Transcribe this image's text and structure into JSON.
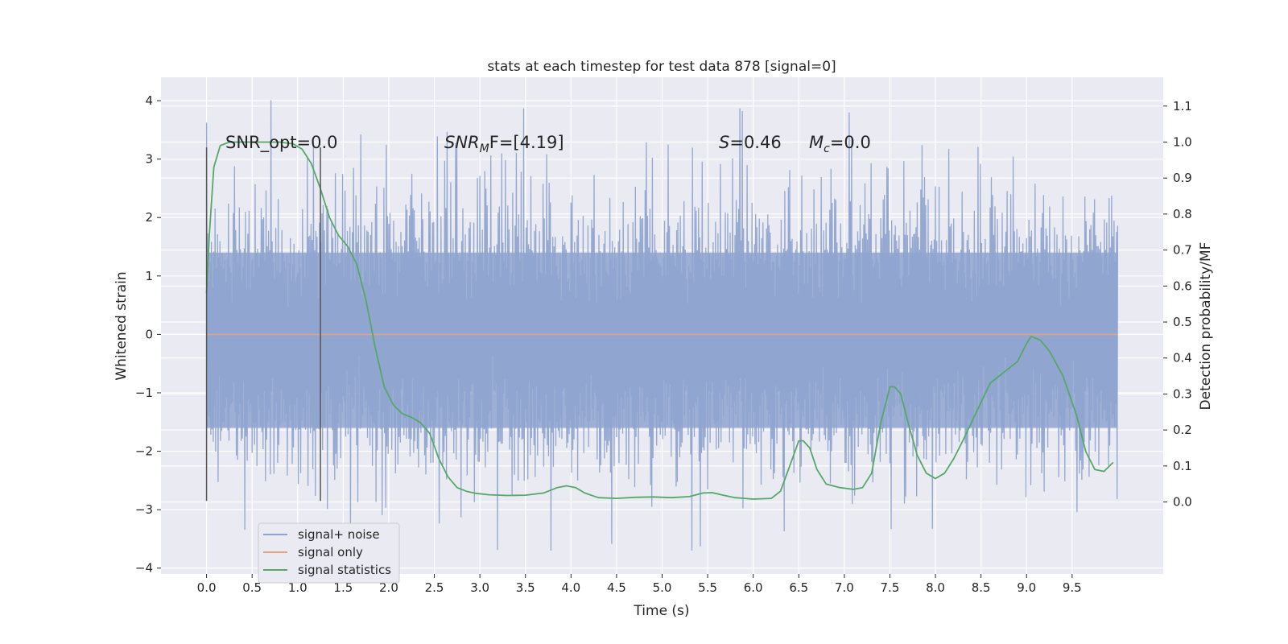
{
  "chart_data": {
    "type": "line",
    "title": "stats at each timestep for test data 878 [signal=0]",
    "xlabel": "Time (s)",
    "ylabel": "Whitened strain",
    "ylabel_right": "Detection probability/MF",
    "xlim": [
      -0.5,
      10.5
    ],
    "ylim": [
      -4.1,
      4.4
    ],
    "ylim_right": [
      -0.2,
      1.18
    ],
    "x_ticks": [
      0.0,
      0.5,
      1.0,
      1.5,
      2.0,
      2.5,
      3.0,
      3.5,
      4.0,
      4.5,
      5.0,
      5.5,
      6.0,
      6.5,
      7.0,
      7.5,
      8.0,
      8.5,
      9.0,
      9.5
    ],
    "x_tick_labels": [
      "0.0",
      "0.5",
      "1.0",
      "1.5",
      "2.0",
      "2.5",
      "3.0",
      "3.5",
      "4.0",
      "4.5",
      "5.0",
      "5.5",
      "6.0",
      "6.5",
      "7.0",
      "7.5",
      "8.0",
      "8.5",
      "9.0",
      "9.5"
    ],
    "y_ticks": [
      -4,
      -3,
      -2,
      -1,
      0,
      1,
      2,
      3,
      4
    ],
    "y_tick_labels": [
      "−4",
      "−3",
      "−2",
      "−1",
      "0",
      "1",
      "2",
      "3",
      "4"
    ],
    "y_ticks_right": [
      0.0,
      0.1,
      0.2,
      0.3,
      0.4,
      0.5,
      0.6,
      0.7,
      0.8,
      0.9,
      1.0,
      1.1
    ],
    "y_tick_labels_right": [
      "0.0",
      "0.1",
      "0.2",
      "0.3",
      "0.4",
      "0.5",
      "0.6",
      "0.7",
      "0.8",
      "0.9",
      "1.0",
      "1.1"
    ],
    "grid": true,
    "legend_position": "lower-left",
    "series": [
      {
        "name": "signal+ noise",
        "axis": "left",
        "color": "#8fa4cf",
        "kind": "noise",
        "x_range": [
          0.0,
          10.0
        ],
        "typical_amplitude": [
          -1.6,
          1.4
        ],
        "envelope_extremes": [
          -3.7,
          4.05
        ]
      },
      {
        "name": "signal only",
        "axis": "left",
        "color": "#e0a285",
        "x": [
          0.0,
          10.0
        ],
        "y": [
          0.0,
          0.0
        ]
      },
      {
        "name": "signal statistics",
        "axis": "right",
        "color": "#55a868",
        "x": [
          0.0,
          0.03,
          0.08,
          0.15,
          0.25,
          0.4,
          0.6,
          0.8,
          0.95,
          1.05,
          1.15,
          1.25,
          1.35,
          1.45,
          1.55,
          1.65,
          1.75,
          1.85,
          1.95,
          2.05,
          2.15,
          2.25,
          2.35,
          2.45,
          2.55,
          2.65,
          2.75,
          2.85,
          2.95,
          3.1,
          3.3,
          3.5,
          3.7,
          3.85,
          3.95,
          4.05,
          4.15,
          4.3,
          4.5,
          4.7,
          4.9,
          5.1,
          5.3,
          5.45,
          5.55,
          5.65,
          5.8,
          6.0,
          6.2,
          6.3,
          6.4,
          6.5,
          6.55,
          6.62,
          6.7,
          6.8,
          6.95,
          7.1,
          7.2,
          7.3,
          7.4,
          7.5,
          7.55,
          7.62,
          7.7,
          7.8,
          7.9,
          8.0,
          8.1,
          8.2,
          8.3,
          8.45,
          8.6,
          8.75,
          8.9,
          9.0,
          9.05,
          9.15,
          9.25,
          9.4,
          9.55,
          9.65,
          9.75,
          9.85,
          9.95
        ],
        "y": [
          0.58,
          0.74,
          0.93,
          0.99,
          1.0,
          1.0,
          1.0,
          1.0,
          0.995,
          0.98,
          0.94,
          0.87,
          0.79,
          0.74,
          0.71,
          0.66,
          0.56,
          0.43,
          0.32,
          0.27,
          0.245,
          0.235,
          0.22,
          0.19,
          0.12,
          0.07,
          0.04,
          0.03,
          0.024,
          0.02,
          0.018,
          0.019,
          0.025,
          0.04,
          0.045,
          0.04,
          0.025,
          0.012,
          0.01,
          0.013,
          0.014,
          0.012,
          0.015,
          0.025,
          0.026,
          0.02,
          0.012,
          0.008,
          0.01,
          0.03,
          0.1,
          0.17,
          0.17,
          0.15,
          0.09,
          0.05,
          0.04,
          0.035,
          0.04,
          0.08,
          0.22,
          0.32,
          0.32,
          0.3,
          0.22,
          0.13,
          0.08,
          0.065,
          0.08,
          0.12,
          0.17,
          0.25,
          0.33,
          0.36,
          0.39,
          0.44,
          0.46,
          0.45,
          0.42,
          0.35,
          0.24,
          0.14,
          0.09,
          0.085,
          0.11
        ]
      }
    ],
    "vertical_lines": [
      {
        "x": 0.0,
        "y": [
          -2.85,
          3.2
        ],
        "color": "#555555"
      },
      {
        "x": 1.25,
        "y": [
          -2.85,
          3.2
        ],
        "color": "#555555"
      }
    ],
    "annotations": {
      "snr_opt_label": "SNR_opt=0.0",
      "snr_mf_label": "SNR",
      "snr_mf_sub": "M",
      "snr_mf_rest": "F=[4.19]",
      "s_label": "S",
      "s_value": "=0.46",
      "mc_label": "M",
      "mc_sub": "c",
      "mc_value": "=0.0"
    }
  }
}
